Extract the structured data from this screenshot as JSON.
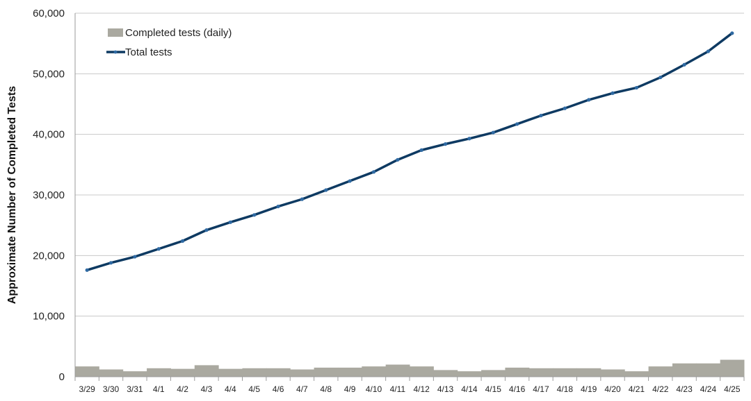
{
  "chart_data": {
    "type": "bar+line",
    "ylabel": "Approximate Number of Completed Tests",
    "xlabel": "",
    "ylim": [
      0,
      60000
    ],
    "yticks": [
      0,
      10000,
      20000,
      30000,
      40000,
      50000,
      60000
    ],
    "ytick_labels": [
      "0",
      "10,000",
      "20,000",
      "30,000",
      "40,000",
      "50,000",
      "60,000"
    ],
    "grid": true,
    "legend_position": "top-left",
    "categories": [
      "3/29",
      "3/30",
      "3/31",
      "4/1",
      "4/2",
      "4/3",
      "4/4",
      "4/5",
      "4/6",
      "4/7",
      "4/8",
      "4/9",
      "4/10",
      "4/11",
      "4/12",
      "4/13",
      "4/14",
      "4/15",
      "4/16",
      "4/17",
      "4/18",
      "4/19",
      "4/20",
      "4/21",
      "4/22",
      "4/23",
      "4/24",
      "4/25"
    ],
    "series": [
      {
        "name": "Completed tests (daily)",
        "type": "bar",
        "color": "#aaa9a0",
        "values": [
          1700,
          1200,
          900,
          1400,
          1300,
          1900,
          1300,
          1400,
          1400,
          1200,
          1500,
          1500,
          1700,
          2000,
          1700,
          1100,
          900,
          1100,
          1500,
          1400,
          1400,
          1400,
          1200,
          900,
          1700,
          2200,
          2200,
          2800
        ]
      },
      {
        "name": "Total tests",
        "type": "line",
        "color": "#0e3a62",
        "values": [
          17600,
          18800,
          19800,
          21100,
          22400,
          24200,
          25500,
          26700,
          28100,
          29300,
          30800,
          32300,
          33800,
          35800,
          37400,
          38400,
          39300,
          40300,
          41700,
          43100,
          44300,
          45700,
          46800,
          47700,
          49400,
          51500,
          53700,
          56700
        ]
      }
    ]
  }
}
